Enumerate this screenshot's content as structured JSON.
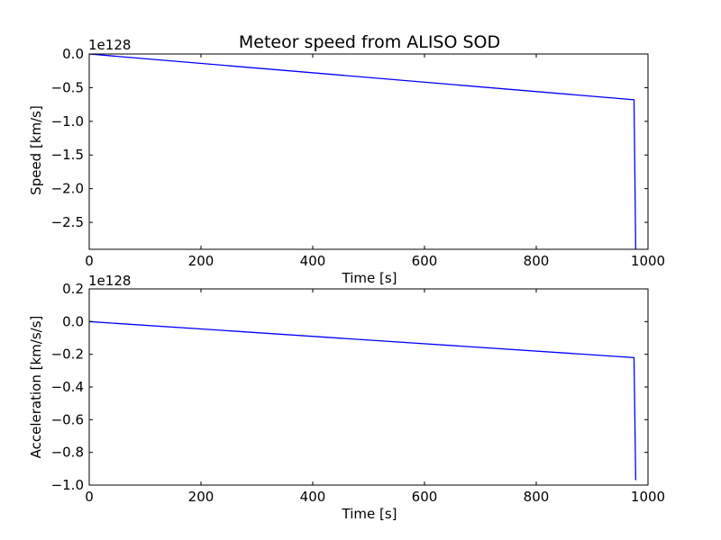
{
  "chart_data": [
    {
      "type": "line",
      "title": "Meteor speed from  ALISO SOD",
      "xlabel": "Time [s]",
      "ylabel": "Speed [km/s]",
      "y_offset_label": "1e128",
      "xlim": [
        0,
        1000
      ],
      "ylim": [
        -2.9,
        0.0
      ],
      "xticks": [
        0,
        200,
        400,
        600,
        800,
        1000
      ],
      "xtick_labels": [
        "0",
        "200",
        "400",
        "600",
        "800",
        "1000"
      ],
      "yticks": [
        0.0,
        -0.5,
        -1.0,
        -1.5,
        -2.0,
        -2.5
      ],
      "ytick_labels": [
        "0.0",
        "−0.5",
        "−1.0",
        "−1.5",
        "−2.0",
        "−2.5"
      ],
      "grid": false,
      "series": [
        {
          "color": "#0000ff",
          "x": [
            0,
            975,
            978,
            978
          ],
          "y": [
            0.0,
            -0.68,
            -2.9,
            -2.9
          ]
        }
      ]
    },
    {
      "type": "line",
      "title": "",
      "xlabel": "Time [s]",
      "ylabel": "Acceleration [km/s/s]",
      "y_offset_label": "1e128",
      "xlim": [
        0,
        1000
      ],
      "ylim": [
        -1.0,
        0.2
      ],
      "xticks": [
        0,
        200,
        400,
        600,
        800,
        1000
      ],
      "xtick_labels": [
        "0",
        "200",
        "400",
        "600",
        "800",
        "1000"
      ],
      "yticks": [
        0.2,
        0.0,
        -0.2,
        -0.4,
        -0.6,
        -0.8,
        -1.0
      ],
      "ytick_labels": [
        "0.2",
        "0.0",
        "−0.2",
        "−0.4",
        "−0.6",
        "−0.8",
        "−1.0"
      ],
      "grid": false,
      "series": [
        {
          "color": "#0000ff",
          "x": [
            0,
            975,
            978
          ],
          "y": [
            0.0,
            -0.22,
            -0.97
          ]
        }
      ]
    }
  ]
}
